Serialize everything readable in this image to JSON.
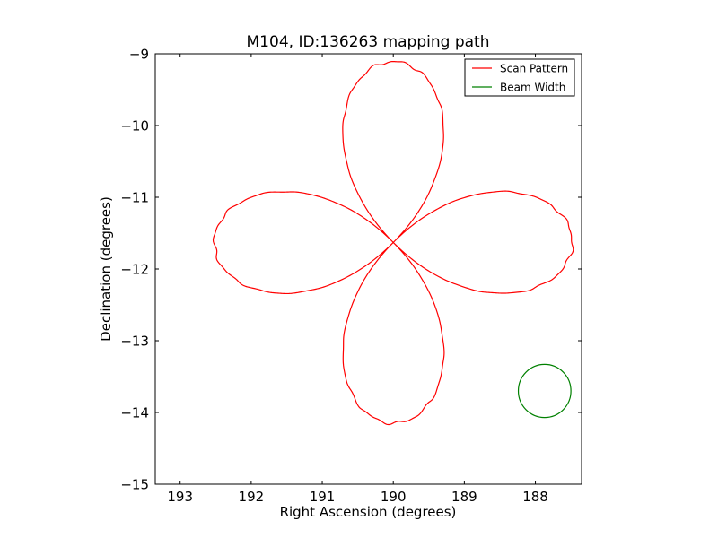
{
  "chart_data": {
    "type": "line",
    "title": "M104, ID:136263 mapping path",
    "xlabel": "Right Ascension (degrees)",
    "ylabel": "Declination (degrees)",
    "xlim": [
      193.35,
      187.35
    ],
    "ylim": [
      -15,
      -9
    ],
    "x_inverted": true,
    "x_ticks": [
      193,
      192,
      191,
      190,
      189,
      188
    ],
    "x_tick_labels": [
      "193",
      "192",
      "191",
      "190",
      "189",
      "188"
    ],
    "y_ticks": [
      -9,
      -10,
      -11,
      -12,
      -13,
      -14,
      -15
    ],
    "y_tick_labels": [
      "−9",
      "−10",
      "−11",
      "−12",
      "−13",
      "−14",
      "−15"
    ],
    "grid": false,
    "legend_position": "top-right",
    "colors": {
      "scan": "#ff0000",
      "beam": "#008000"
    },
    "series": [
      {
        "name": "Scan Pattern",
        "kind": "four-lobed rosette scan path",
        "center": {
          "x": 190.0,
          "y": -11.63
        },
        "lobe_extent_deg": 2.52,
        "lobes_RA": [
          {
            "direction": "east",
            "tip": {
              "x": 192.65,
              "y": -11.63
            },
            "max_dec": -10.92,
            "min_dec": -12.31
          },
          {
            "direction": "west",
            "tip": {
              "x": 187.38,
              "y": -11.63
            },
            "max_dec": -10.92,
            "min_dec": -12.31
          }
        ],
        "lobes_Dec": [
          {
            "direction": "north",
            "tip": {
              "x": 190.0,
              "y": -9.1
            },
            "east_ra": 190.7,
            "west_ra": 189.3
          },
          {
            "direction": "south",
            "tip": {
              "x": 190.0,
              "y": -14.13
            },
            "east_ra": 190.7,
            "west_ra": 189.3
          }
        ],
        "start": {
          "x": 192.65,
          "y": -11.63
        }
      },
      {
        "name": "Beam Width",
        "kind": "circle",
        "center": {
          "x": 187.87,
          "y": -13.7
        },
        "radius_deg": 0.37
      }
    ],
    "legend": [
      {
        "label": "Scan Pattern",
        "color": "#ff0000"
      },
      {
        "label": "Beam Width",
        "color": "#008000"
      }
    ]
  }
}
